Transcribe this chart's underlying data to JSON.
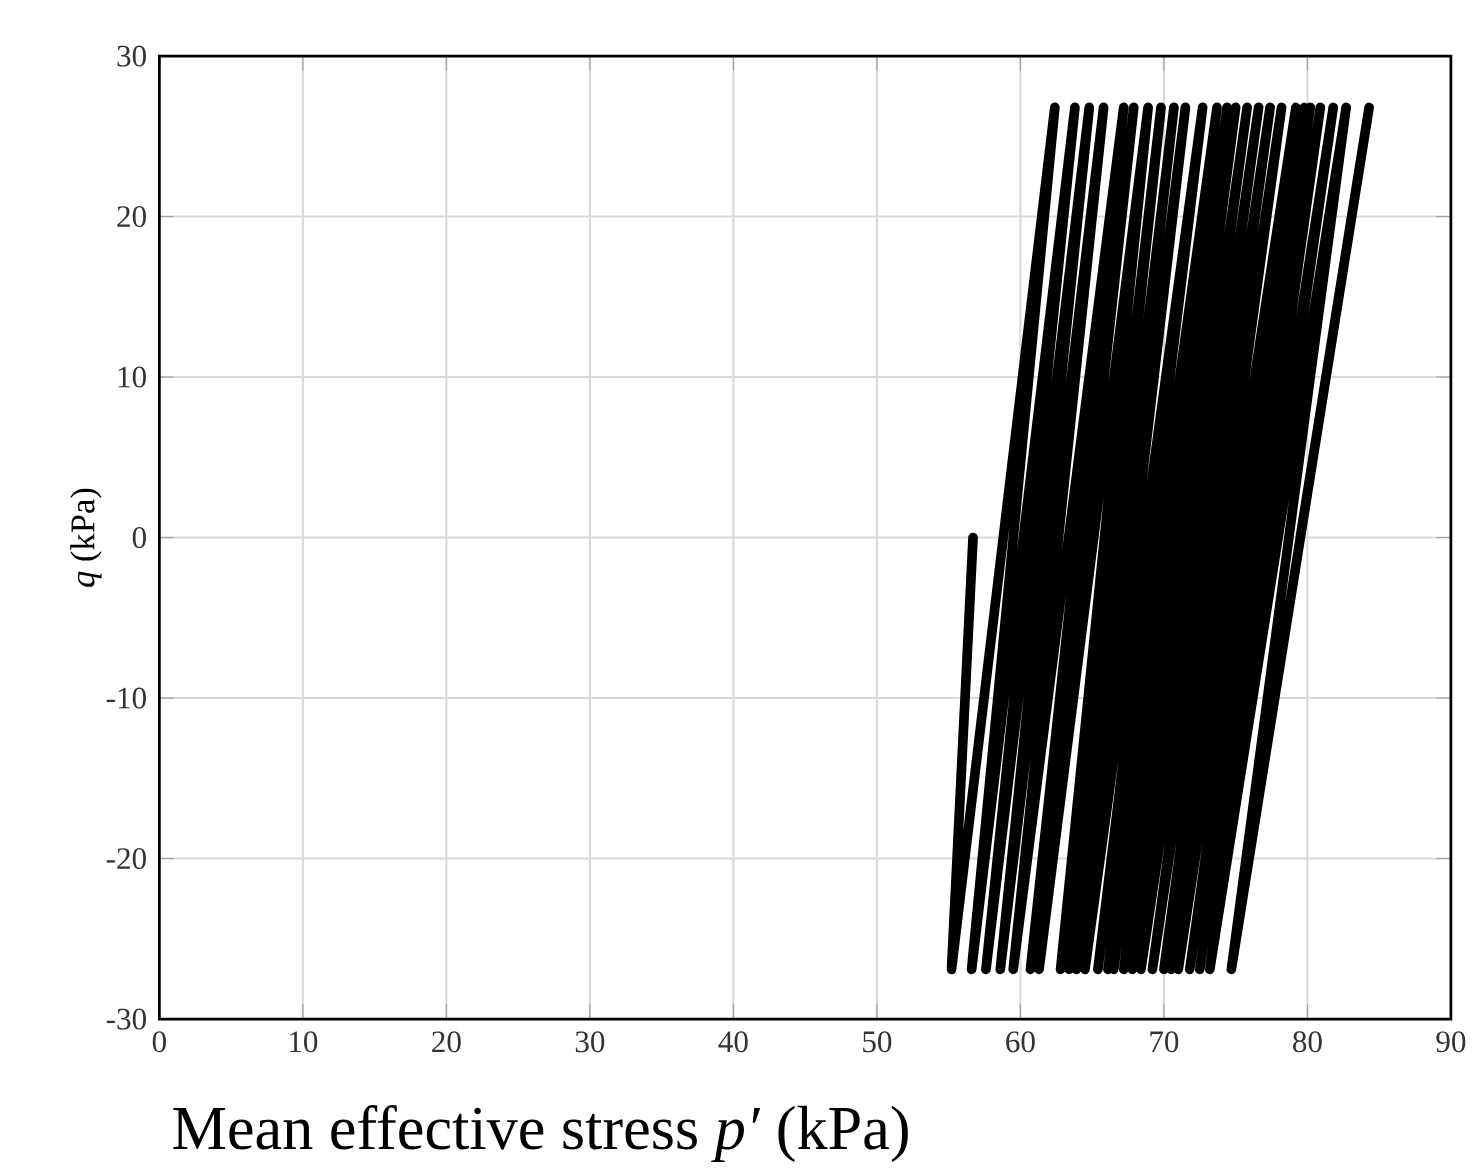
{
  "chart_data": {
    "type": "line",
    "xlabel": "Mean effective stress  *p′*  (kPa)",
    "ylabel": "*q*  (kPa)",
    "series": [
      {
        "color": "#000000",
        "x": [
          56.7,
          55.2,
          62.4,
          56.6,
          63.8,
          57.6,
          64.8,
          58.6,
          65.8,
          59.5,
          67.2,
          60.7,
          67.9,
          61.3,
          68.9,
          62.8,
          69.8,
          63.4,
          70.7,
          63.9,
          71.5,
          64.5,
          72.7,
          65.4,
          73.7,
          66.1,
          74.4,
          66.5,
          75.0,
          67.2,
          75.8,
          67.8,
          76.6,
          68.4,
          77.4,
          69.2,
          78.2,
          70.0,
          79.2,
          70.5,
          79.8,
          71.0,
          80.2,
          71.8,
          80.9,
          72.5,
          81.8,
          73.2,
          82.7,
          74.7,
          84.3,
          79.5
        ],
        "values": [
          0,
          -26.9,
          26.8,
          -26.9,
          26.8,
          -26.9,
          26.8,
          -26.9,
          26.8,
          -26.9,
          26.8,
          -26.9,
          26.8,
          -26.9,
          26.8,
          -26.9,
          26.8,
          -26.9,
          26.8,
          -26.9,
          26.8,
          -26.9,
          26.8,
          -26.9,
          26.8,
          -26.9,
          26.8,
          -26.9,
          26.8,
          -26.9,
          26.8,
          -26.9,
          26.8,
          -26.9,
          26.8,
          -26.9,
          26.8,
          -26.9,
          26.8,
          -26.9,
          26.8,
          -26.9,
          26.8,
          -26.9,
          26.8,
          -26.9,
          26.8,
          -26.9,
          26.8,
          -26.9,
          26.8,
          0
        ]
      }
    ],
    "xlim": [
      0,
      90
    ],
    "ylim": [
      -30,
      30
    ],
    "xticks": [
      0,
      10,
      20,
      30,
      40,
      50,
      60,
      70,
      80,
      90
    ],
    "yticks": [
      -30,
      -20,
      -10,
      0,
      10,
      20,
      30
    ],
    "grid": true
  }
}
